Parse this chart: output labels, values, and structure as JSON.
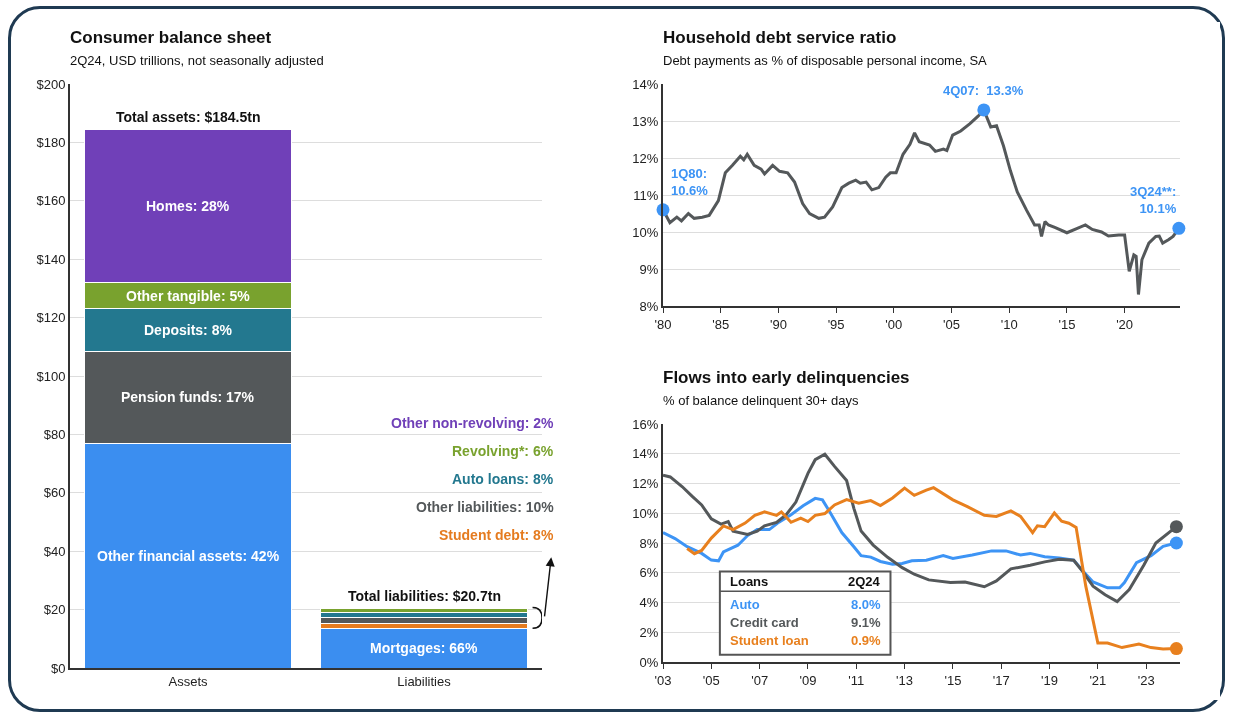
{
  "chart_data": [
    {
      "type": "bar",
      "title": "Consumer balance sheet",
      "subtitle": "2Q24, USD trillions, not seasonally adjusted",
      "categories": [
        "Assets",
        "Liabilities"
      ],
      "stacked": true,
      "grid": "y",
      "ylim": [
        0,
        200
      ],
      "yticks": [
        {
          "value": 0,
          "label": "$0"
        },
        {
          "value": 20,
          "label": "$20"
        },
        {
          "value": 40,
          "label": "$40"
        },
        {
          "value": 60,
          "label": "$60"
        },
        {
          "value": 80,
          "label": "$80"
        },
        {
          "value": 100,
          "label": "$100"
        },
        {
          "value": 120,
          "label": "$120"
        },
        {
          "value": 140,
          "label": "$140"
        },
        {
          "value": 160,
          "label": "$160"
        },
        {
          "value": 180,
          "label": "$180"
        },
        {
          "value": 200,
          "label": "$200"
        }
      ],
      "series": [
        {
          "color": "#3b8ef0",
          "values": [
            77,
            null
          ]
        },
        {
          "color": "#54585a",
          "values": [
            31.5,
            null
          ]
        },
        {
          "color": "#23788f",
          "values": [
            14.5,
            null
          ]
        },
        {
          "color": "#79a22e",
          "values": [
            9,
            null
          ]
        },
        {
          "color": "#7040b8",
          "values": [
            52.5,
            null
          ]
        },
        {
          "color": "#3b8ef0",
          "values": [
            null,
            13.6
          ]
        },
        {
          "color": "#e57b1f",
          "values": [
            null,
            1.7
          ]
        },
        {
          "color": "#54585a",
          "values": [
            null,
            2.1
          ]
        },
        {
          "color": "#23788f",
          "values": [
            null,
            1.7
          ]
        },
        {
          "color": "#79a22e",
          "values": [
            null,
            1.2
          ]
        },
        {
          "color": "#7040b8",
          "values": [
            null,
            0.4
          ]
        }
      ],
      "legend": false,
      "annotations": [
        "Other financial assets: 42%",
        "Pension funds: 17%",
        "Deposits: 8%",
        "Other tangible: 5%",
        "Homes: 28%",
        "Mortgages: 66%",
        "Student debt: 8%",
        "Other liabilities: 10%",
        "Auto loans: 8%",
        "Revolving*: 6%",
        "Other non-revolving: 2%"
      ],
      "totals": [
        "Total assets: $184.5tn",
        "Total liabilities: $20.7tn"
      ]
    },
    {
      "type": "line",
      "title": "Household debt service ratio",
      "subtitle": "Debt payments as % of disposable personal income, SA",
      "grid": "y",
      "legend": false,
      "xlim": [
        1980,
        2024.8
      ],
      "xticks": [
        {
          "value": 1980,
          "label": "'80"
        },
        {
          "value": 1985,
          "label": "'85"
        },
        {
          "value": 1990,
          "label": "'90"
        },
        {
          "value": 1995,
          "label": "'95"
        },
        {
          "value": 2000,
          "label": "'00"
        },
        {
          "value": 2005,
          "label": "'05"
        },
        {
          "value": 2010,
          "label": "'10"
        },
        {
          "value": 2015,
          "label": "'15"
        },
        {
          "value": 2020,
          "label": "'20"
        }
      ],
      "ylim": [
        8,
        14
      ],
      "yticks": [
        {
          "value": 8,
          "label": "8%"
        },
        {
          "value": 9,
          "label": "9%"
        },
        {
          "value": 10,
          "label": "10%"
        },
        {
          "value": 11,
          "label": "11%"
        },
        {
          "value": 12,
          "label": "12%"
        },
        {
          "value": 13,
          "label": "13%"
        },
        {
          "value": 14,
          "label": "14%"
        }
      ],
      "series": [
        {
          "color": "#54585a",
          "marker": "none",
          "x": [
            1980,
            1980.6,
            1981.2,
            1981.6,
            1982.2,
            1982.7,
            1983.4,
            1984.0,
            1984.8,
            1985.4,
            1986.0,
            1986.7,
            1987.0,
            1987.3,
            1987.9,
            1988.5,
            1988.8,
            1989.5,
            1990.1,
            1990.8,
            1991.4,
            1992.1,
            1992.7,
            1993.5,
            1994.0,
            1994.7,
            1995.5,
            1996.1,
            1996.7,
            1997.1,
            1997.6,
            1998.1,
            1998.7,
            1999.3,
            1999.7,
            2000.2,
            2000.8,
            2001.4,
            2001.8,
            2002.2,
            2003.1,
            2003.6,
            2004.3,
            2004.6,
            2005.1,
            2005.8,
            2006.6,
            2007.3,
            2007.8,
            2008.4,
            2008.9,
            2009.5,
            2010.1,
            2010.7,
            2011.5,
            2012.2,
            2012.6,
            2012.8,
            2013.1,
            2013.4,
            2014.0,
            2015.0,
            2015.9,
            2016.6,
            2017.2,
            2018.0,
            2018.6,
            2019.5,
            2020.0,
            2020.4,
            2020.8,
            2021.0,
            2021.2,
            2021.5,
            2022.1,
            2022.7,
            2023.0,
            2023.3,
            2023.8,
            2024.2,
            2024.7
          ],
          "values": [
            10.6,
            10.25,
            10.4,
            10.3,
            10.5,
            10.37,
            10.4,
            10.45,
            10.85,
            11.6,
            11.8,
            12.05,
            11.95,
            12.1,
            11.8,
            11.7,
            11.57,
            11.8,
            11.64,
            11.6,
            11.35,
            10.77,
            10.5,
            10.37,
            10.4,
            10.68,
            11.2,
            11.32,
            11.4,
            11.32,
            11.35,
            11.14,
            11.2,
            11.48,
            11.6,
            11.6,
            12.1,
            12.37,
            12.68,
            12.44,
            12.35,
            12.18,
            12.24,
            12.2,
            12.62,
            12.73,
            12.93,
            13.13,
            13.3,
            12.84,
            12.87,
            12.33,
            11.66,
            11.08,
            10.59,
            10.19,
            10.19,
            9.88,
            10.28,
            10.19,
            10.12,
            9.98,
            10.1,
            10.19,
            10.07,
            10.0,
            9.89,
            9.92,
            9.92,
            8.94,
            9.38,
            9.34,
            8.31,
            9.25,
            9.7,
            9.88,
            9.89,
            9.7,
            9.79,
            9.88,
            10.1
          ]
        },
        {
          "type": "scatter",
          "color": "#3d94f5",
          "marker": "circle",
          "x": [
            1980,
            2007.8,
            2024.7
          ],
          "values": [
            10.6,
            13.3,
            10.1
          ]
        }
      ],
      "annotations": [
        {
          "text": "1Q80:\n10.6%",
          "x": 1980,
          "y": 10.6
        },
        {
          "text": "4Q07:  13.3%",
          "x": 2007.8,
          "y": 13.3
        },
        {
          "text": "3Q24**:\n10.1%",
          "x": 2024.7,
          "y": 10.1
        }
      ]
    },
    {
      "type": "line",
      "title": "Flows into early delinquencies",
      "subtitle": "% of balance delinquent 30+ days",
      "grid": "y",
      "legend": "bottom left",
      "legend_title": "Loans",
      "xlim": [
        2003,
        2024.4
      ],
      "xticks": [
        {
          "value": 2003,
          "label": "'03"
        },
        {
          "value": 2005,
          "label": "'05"
        },
        {
          "value": 2007,
          "label": "'07"
        },
        {
          "value": 2009,
          "label": "'09"
        },
        {
          "value": 2011,
          "label": "'11"
        },
        {
          "value": 2013,
          "label": "'13"
        },
        {
          "value": 2015,
          "label": "'15"
        },
        {
          "value": 2017,
          "label": "'17"
        },
        {
          "value": 2019,
          "label": "'19"
        },
        {
          "value": 2021,
          "label": "'21"
        },
        {
          "value": 2023,
          "label": "'23"
        }
      ],
      "ylim": [
        0,
        16
      ],
      "yticks": [
        {
          "value": 0,
          "label": "0%"
        },
        {
          "value": 2,
          "label": "2%"
        },
        {
          "value": 4,
          "label": "4%"
        },
        {
          "value": 6,
          "label": "6%"
        },
        {
          "value": 8,
          "label": "8%"
        },
        {
          "value": 10,
          "label": "10%"
        },
        {
          "value": 12,
          "label": "12%"
        },
        {
          "value": 14,
          "label": "14%"
        },
        {
          "value": 16,
          "label": "16%"
        }
      ],
      "series": [
        {
          "name": "Auto",
          "color": "#3d94f5",
          "x": [
            2003,
            2003.5,
            2004,
            2004.6,
            2005,
            2005.3,
            2005.5,
            2006.1,
            2006.5,
            2006.9,
            2007.4,
            2007.8,
            2008.3,
            2008.8,
            2009.3,
            2009.6,
            2009.9,
            2010.4,
            2010.9,
            2011.2,
            2011.6,
            2012,
            2012.5,
            2012.9,
            2013.3,
            2013.9,
            2014.6,
            2015,
            2015.8,
            2016.6,
            2017.2,
            2017.8,
            2018.2,
            2018.8,
            2019.4,
            2020,
            2020.4,
            2020.8,
            2021.4,
            2021.9,
            2022.1,
            2022.6,
            2023.2,
            2023.7,
            2024.25
          ],
          "values": [
            8.7,
            8.3,
            7.75,
            7.3,
            6.85,
            6.8,
            7.4,
            7.85,
            8.5,
            8.9,
            8.9,
            9.4,
            9.9,
            10.5,
            11.0,
            10.9,
            10.1,
            8.7,
            7.75,
            7.15,
            7.05,
            6.76,
            6.57,
            6.62,
            6.8,
            6.84,
            7.15,
            6.96,
            7.19,
            7.47,
            7.47,
            7.19,
            7.3,
            7.08,
            7.0,
            6.84,
            6.08,
            5.38,
            4.99,
            4.99,
            5.34,
            6.68,
            7.15,
            7.77,
            8.0
          ]
        },
        {
          "name": "Credit card",
          "color": "#54585a",
          "x": [
            2003,
            2003.3,
            2003.8,
            2004.2,
            2004.6,
            2005,
            2005.4,
            2005.7,
            2005.9,
            2006.5,
            2006.9,
            2007.2,
            2007.7,
            2008.1,
            2008.5,
            2009,
            2009.3,
            2009.7,
            2010.1,
            2010.6,
            2010.9,
            2011.2,
            2011.7,
            2012.3,
            2012.9,
            2013.4,
            2014,
            2014.9,
            2015.5,
            2016.3,
            2016.8,
            2017.4,
            2018.2,
            2018.8,
            2019.4,
            2020,
            2020.4,
            2020.8,
            2021.3,
            2021.8,
            2022.3,
            2022.9,
            2023.4,
            2024.25
          ],
          "values": [
            12.56,
            12.44,
            11.78,
            11.15,
            10.56,
            9.62,
            9.27,
            9.44,
            8.8,
            8.57,
            8.8,
            9.15,
            9.39,
            9.9,
            10.75,
            12.68,
            13.6,
            13.97,
            13.15,
            12.2,
            10.33,
            8.8,
            7.86,
            7.04,
            6.34,
            5.9,
            5.52,
            5.34,
            5.38,
            5.06,
            5.45,
            6.26,
            6.5,
            6.73,
            6.91,
            6.84,
            6.03,
            5.1,
            4.52,
            4.06,
            4.87,
            6.5,
            8.0,
            9.1
          ]
        },
        {
          "name": "Student loan",
          "color": "#e8801e",
          "x": [
            2004,
            2004.3,
            2004.6,
            2005,
            2005.5,
            2005.9,
            2006.4,
            2006.8,
            2007.2,
            2007.7,
            2007.9,
            2008.3,
            2008.7,
            2009,
            2009.3,
            2009.7,
            2010.1,
            2010.6,
            2011.1,
            2011.6,
            2012,
            2012.5,
            2013,
            2013.4,
            2013.9,
            2014.2,
            2015,
            2015.6,
            2016.3,
            2016.8,
            2017.4,
            2017.8,
            2018.3,
            2018.5,
            2018.8,
            2019.2,
            2019.5,
            2019.8,
            2020.1,
            2020.5,
            2021,
            2021.4,
            2022,
            2022.7,
            2023.2,
            2023.7,
            2024.25
          ],
          "values": [
            7.63,
            7.28,
            7.5,
            8.33,
            9.15,
            8.9,
            9.34,
            9.86,
            10.09,
            9.86,
            10.09,
            9.39,
            9.67,
            9.44,
            9.86,
            9.98,
            10.56,
            10.92,
            10.68,
            10.85,
            10.52,
            11.03,
            11.69,
            11.2,
            11.55,
            11.72,
            10.9,
            10.44,
            9.86,
            9.79,
            10.16,
            9.79,
            8.7,
            9.16,
            9.1,
            10.02,
            9.47,
            9.33,
            9.05,
            5.1,
            1.28,
            1.28,
            0.97,
            1.21,
            0.97,
            0.88,
            0.9
          ]
        },
        {
          "type": "scatter",
          "marker": "circle",
          "x": [
            2024.25,
            2024.25,
            2024.25
          ],
          "values": [
            8.0,
            9.1,
            0.9
          ],
          "colors": [
            "#3d94f5",
            "#54585a",
            "#e8801e"
          ]
        }
      ],
      "annotations": [
        "2Q24",
        "8.0%",
        "9.1%",
        "0.9%"
      ]
    }
  ]
}
